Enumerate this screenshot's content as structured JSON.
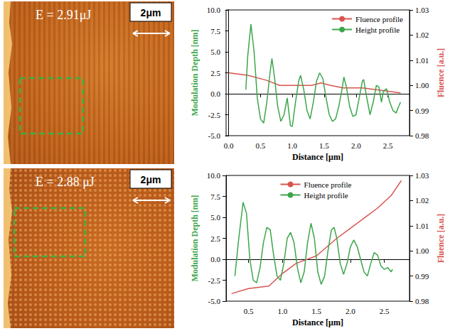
{
  "images": [
    {
      "label": "E = 2.91μJ",
      "scale_bar": "2μm"
    },
    {
      "label": "E = 2.88 μJ",
      "scale_bar": "2μm"
    }
  ],
  "chart_data": [
    {
      "type": "line",
      "x_label": "Distance [μm]",
      "y_label": "Modulation Depth [nm]",
      "y2_label": "Fluence [a.u.]",
      "legend": "upper right",
      "xlim": [
        -0.04,
        2.84
      ],
      "xticks": [
        {
          "value": 0,
          "label": "0.0"
        },
        0.5,
        {
          "value": 1,
          "label": "1.0"
        },
        1.5,
        {
          "value": 2,
          "label": "2.0"
        },
        2.5
      ],
      "ylim": [
        -5,
        10
      ],
      "yticks": [
        {
          "value": -5,
          "label": "-5.0"
        },
        -2.5,
        {
          "value": 0,
          "label": "0.0"
        },
        2.5,
        {
          "value": 5,
          "label": "5.0"
        },
        7.5,
        {
          "value": 10,
          "label": "10.0"
        }
      ],
      "y2lim": [
        0.98,
        1.03
      ],
      "y2ticks": [
        0.98,
        0.99,
        {
          "value": 1,
          "label": "1.00"
        },
        1.01,
        1.02,
        1.03
      ],
      "series": [
        {
          "name": "Fluence profile",
          "color": "#d9534f",
          "axis": "y2",
          "x": [
            0.0,
            0.3,
            0.6,
            0.8,
            1.0,
            1.3,
            1.45,
            1.6,
            1.8,
            2.1,
            2.4,
            2.7
          ],
          "values": [
            1.005,
            1.004,
            1.002,
            1.0,
            1.0,
            1.0,
            1.001,
            1.0,
            0.999,
            0.999,
            0.998,
            0.997
          ]
        },
        {
          "name": "Height profile",
          "color": "#3ca64a",
          "x": [
            0.27,
            0.3,
            0.35,
            0.4,
            0.45,
            0.5,
            0.55,
            0.6,
            0.65,
            0.68,
            0.72,
            0.77,
            0.82,
            0.87,
            0.92,
            0.97,
            1.0,
            1.05,
            1.1,
            1.13,
            1.18,
            1.23,
            1.28,
            1.33,
            1.38,
            1.43,
            1.48,
            1.53,
            1.58,
            1.63,
            1.68,
            1.73,
            1.78,
            1.81,
            1.85,
            1.9,
            1.95,
            2.0,
            2.05,
            2.1,
            2.12,
            2.17,
            2.22,
            2.27,
            2.32,
            2.36,
            2.4,
            2.43,
            2.48,
            2.53,
            2.58,
            2.63,
            2.67,
            2.7
          ],
          "values": [
            0.5,
            4.5,
            8.3,
            5.0,
            -0.5,
            -3.0,
            -3.5,
            -1.0,
            2.5,
            4.2,
            2.0,
            -1.5,
            -3.3,
            -2.5,
            -0.5,
            -3.8,
            -3.9,
            -1.0,
            1.5,
            2.2,
            0.5,
            -2.0,
            -3.0,
            -1.0,
            1.5,
            2.5,
            1.8,
            -0.5,
            -2.5,
            -3.3,
            -3.0,
            -1.5,
            0.5,
            2.0,
            0.8,
            -1.5,
            -2.7,
            -2.5,
            -0.5,
            1.5,
            1.7,
            -0.5,
            -2.5,
            -1.0,
            1.0,
            0.8,
            -1.0,
            0.3,
            0.6,
            -1.0,
            -2.0,
            -2.3,
            -1.5,
            -1.0
          ]
        }
      ]
    },
    {
      "type": "line",
      "x_label": "Distance [μm]",
      "y_label": "Modulation Depth [nm]",
      "y2_label": "Fluence [a.u.]",
      "legend": "upper center",
      "xlim": [
        0.17,
        2.87
      ],
      "xticks": [
        0.5,
        {
          "value": 1,
          "label": "1.0"
        },
        1.5,
        {
          "value": 2,
          "label": "2.0"
        },
        2.5
      ],
      "ylim": [
        -5,
        10
      ],
      "yticks": [
        {
          "value": -5,
          "label": "-5.0"
        },
        -2.5,
        {
          "value": 0,
          "label": "0.0"
        },
        2.5,
        {
          "value": 5,
          "label": "5.0"
        },
        7.5,
        {
          "value": 10,
          "label": "10.0"
        }
      ],
      "y2lim": [
        0.98,
        1.03
      ],
      "y2ticks": [
        0.98,
        0.99,
        {
          "value": 1,
          "label": "1.00"
        },
        1.01,
        1.02,
        1.03
      ],
      "series": [
        {
          "name": "Fluence profile",
          "color": "#d9534f",
          "axis": "y2",
          "x": [
            0.25,
            0.5,
            0.8,
            1.0,
            1.2,
            1.5,
            1.8,
            2.0,
            2.2,
            2.4,
            2.6,
            2.75
          ],
          "values": [
            0.983,
            0.985,
            0.986,
            0.991,
            0.995,
            0.998,
            1.005,
            1.009,
            1.013,
            1.017,
            1.022,
            1.028
          ]
        },
        {
          "name": "Height profile",
          "color": "#3ca64a",
          "x": [
            0.3,
            0.35,
            0.42,
            0.47,
            0.52,
            0.57,
            0.62,
            0.67,
            0.72,
            0.77,
            0.82,
            0.87,
            0.92,
            0.97,
            1.02,
            1.07,
            1.12,
            1.17,
            1.22,
            1.27,
            1.32,
            1.37,
            1.42,
            1.47,
            1.52,
            1.57,
            1.62,
            1.67,
            1.72,
            1.76,
            1.8,
            1.85,
            1.9,
            1.95,
            2.0,
            2.05,
            2.1,
            2.15,
            2.2,
            2.25,
            2.3,
            2.35,
            2.4,
            2.45,
            2.5,
            2.55,
            2.6,
            2.62
          ],
          "values": [
            -2.0,
            2.0,
            6.8,
            5.5,
            0.0,
            -2.5,
            -2.8,
            -1.0,
            2.0,
            3.8,
            3.5,
            0.5,
            -2.0,
            -2.5,
            -0.5,
            2.5,
            3.2,
            2.0,
            -1.0,
            -2.8,
            -1.5,
            2.0,
            4.3,
            2.5,
            -1.5,
            -3.0,
            -2.0,
            1.0,
            3.5,
            3.8,
            2.5,
            -0.5,
            -1.8,
            -0.5,
            1.5,
            2.3,
            1.5,
            0.0,
            -1.5,
            -2.0,
            -0.5,
            0.8,
            0.5,
            -0.8,
            -1.2,
            -1.0,
            -1.5,
            -1.2
          ]
        }
      ]
    }
  ]
}
